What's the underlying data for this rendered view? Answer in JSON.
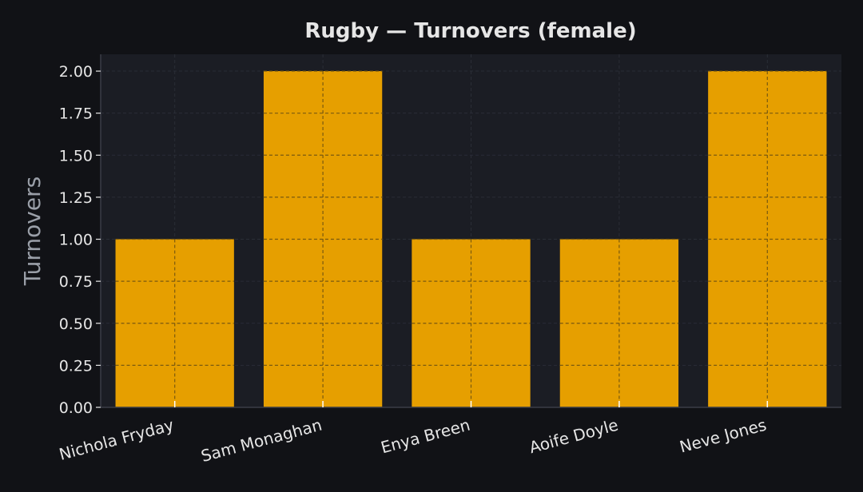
{
  "chart_data": {
    "type": "bar",
    "title": "Rugby — Turnovers (female)",
    "xlabel": "",
    "ylabel": "Turnovers",
    "categories": [
      "Nichola Fryday",
      "Sam Monaghan",
      "Enya Breen",
      "Aoife Doyle",
      "Neve Jones"
    ],
    "values": [
      1,
      2,
      1,
      1,
      2
    ],
    "ylim": [
      0,
      2.1
    ],
    "yticks": [
      "0.00",
      "0.25",
      "0.50",
      "0.75",
      "1.00",
      "1.25",
      "1.50",
      "1.75",
      "2.00"
    ],
    "grid": true,
    "colors": {
      "bar": "#E69F00",
      "background": "#111216",
      "plot_background": "#1B1D24",
      "text": "#E6E6E6",
      "ylabel_text": "#9A9FA8",
      "grid": "#2A2D36"
    }
  }
}
